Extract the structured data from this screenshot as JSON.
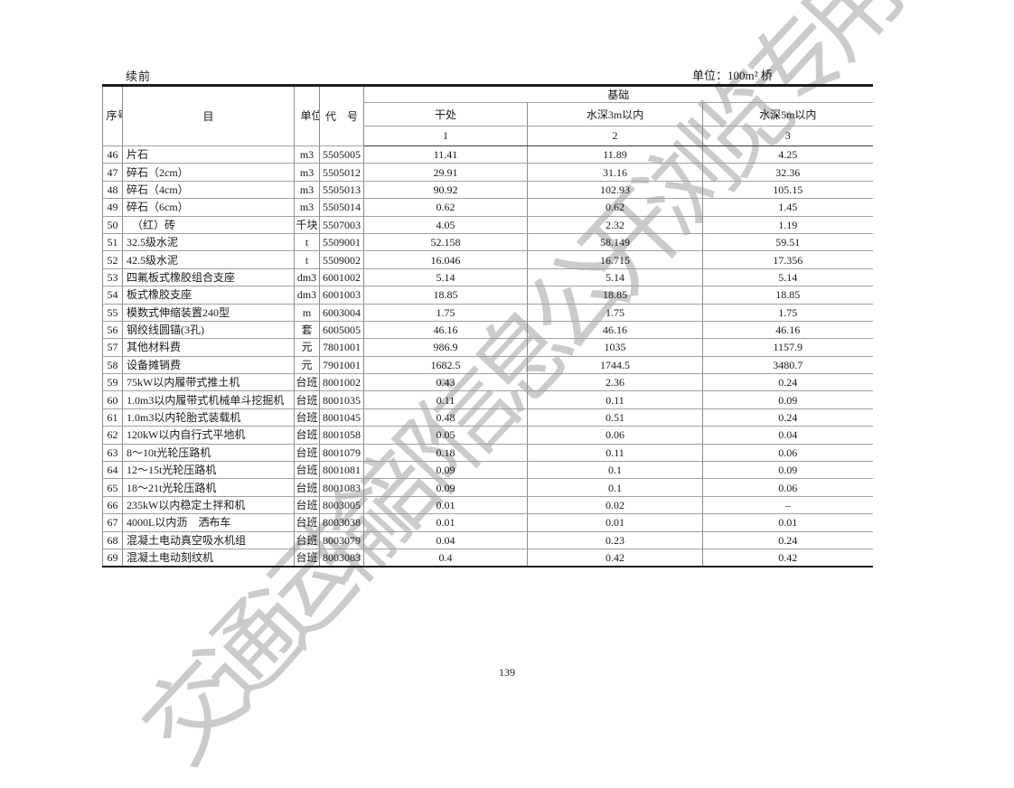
{
  "page": {
    "continuation_label": "续前",
    "unit_label": "单位：100m² 桥",
    "page_number": "139",
    "watermark": "交通运输部信息公开浏览专用",
    "watermark_color": "#cbcbcb"
  },
  "table": {
    "headers": {
      "seq": "序号",
      "item": "目",
      "unit": "单位",
      "code": "代　号",
      "group": "基础",
      "col_dry": "干处",
      "col_w3": "水深3m以内",
      "col_w5": "水深5m以内",
      "num1": "1",
      "num2": "2",
      "num3": "3"
    },
    "rows": [
      {
        "no": "46",
        "item": "片石",
        "unit": "m3",
        "code": "5505005",
        "dry": "11.41",
        "w3": "11.89",
        "w5": "4.25"
      },
      {
        "no": "47",
        "item": "碎石（2cm）",
        "unit": "m3",
        "code": "5505012",
        "dry": "29.91",
        "w3": "31.16",
        "w5": "32.36"
      },
      {
        "no": "48",
        "item": "碎石（4cm）",
        "unit": "m3",
        "code": "5505013",
        "dry": "90.92",
        "w3": "102.93",
        "w5": "105.15"
      },
      {
        "no": "49",
        "item": "碎石（6cm）",
        "unit": "m3",
        "code": "5505014",
        "dry": "0.62",
        "w3": "0.62",
        "w5": "1.45"
      },
      {
        "no": "50",
        "item": "　（红）砖",
        "unit": "千块",
        "code": "5507003",
        "dry": "4.05",
        "w3": "2.32",
        "w5": "1.19"
      },
      {
        "no": "51",
        "item": "32.5级水泥",
        "unit": "t",
        "code": "5509001",
        "dry": "52.158",
        "w3": "58.149",
        "w5": "59.51"
      },
      {
        "no": "52",
        "item": "42.5级水泥",
        "unit": "t",
        "code": "5509002",
        "dry": "16.046",
        "w3": "16.715",
        "w5": "17.356"
      },
      {
        "no": "53",
        "item": "四氟板式橡胶组合支座",
        "unit": "dm3",
        "code": "6001002",
        "dry": "5.14",
        "w3": "5.14",
        "w5": "5.14"
      },
      {
        "no": "54",
        "item": "板式橡胶支座",
        "unit": "dm3",
        "code": "6001003",
        "dry": "18.85",
        "w3": "18.85",
        "w5": "18.85"
      },
      {
        "no": "55",
        "item": "模数式伸缩装置240型",
        "unit": "m",
        "code": "6003004",
        "dry": "1.75",
        "w3": "1.75",
        "w5": "1.75"
      },
      {
        "no": "56",
        "item": "钢绞线圆锚(3孔)",
        "unit": "套",
        "code": "6005005",
        "dry": "46.16",
        "w3": "46.16",
        "w5": "46.16"
      },
      {
        "no": "57",
        "item": "其他材料费",
        "unit": "元",
        "code": "7801001",
        "dry": "986.9",
        "w3": "1035",
        "w5": "1157.9"
      },
      {
        "no": "58",
        "item": "设备摊销费",
        "unit": "元",
        "code": "7901001",
        "dry": "1682.5",
        "w3": "1744.5",
        "w5": "3480.7"
      },
      {
        "no": "59",
        "item": "75kW以内履带式推土机",
        "unit": "台班",
        "code": "8001002",
        "dry": "0.43",
        "w3": "2.36",
        "w5": "0.24"
      },
      {
        "no": "60",
        "item": "1.0m3以内履带式机械单斗挖掘机",
        "unit": "台班",
        "code": "8001035",
        "dry": "0.11",
        "w3": "0.11",
        "w5": "0.09"
      },
      {
        "no": "61",
        "item": "1.0m3以内轮胎式装载机",
        "unit": "台班",
        "code": "8001045",
        "dry": "0.48",
        "w3": "0.51",
        "w5": "0.24"
      },
      {
        "no": "62",
        "item": "120kW以内自行式平地机",
        "unit": "台班",
        "code": "8001058",
        "dry": "0.05",
        "w3": "0.06",
        "w5": "0.04"
      },
      {
        "no": "63",
        "item": "8～10t光轮压路机",
        "unit": "台班",
        "code": "8001079",
        "dry": "0.18",
        "w3": "0.11",
        "w5": "0.06"
      },
      {
        "no": "64",
        "item": "12～15t光轮压路机",
        "unit": "台班",
        "code": "8001081",
        "dry": "0.09",
        "w3": "0.1",
        "w5": "0.09"
      },
      {
        "no": "65",
        "item": "18～21t光轮压路机",
        "unit": "台班",
        "code": "8001083",
        "dry": "0.09",
        "w3": "0.1",
        "w5": "0.06"
      },
      {
        "no": "66",
        "item": "235kW以内稳定土拌和机",
        "unit": "台班",
        "code": "8003005",
        "dry": "0.01",
        "w3": "0.02",
        "w5": "–"
      },
      {
        "no": "67",
        "item": "4000L以内沥　洒布车",
        "unit": "台班",
        "code": "8003038",
        "dry": "0.01",
        "w3": "0.01",
        "w5": "0.01"
      },
      {
        "no": "68",
        "item": "混凝土电动真空吸水机组",
        "unit": "台班",
        "code": "8003079",
        "dry": "0.04",
        "w3": "0.23",
        "w5": "0.24"
      },
      {
        "no": "69",
        "item": "混凝土电动刻纹机",
        "unit": "台班",
        "code": "8003083",
        "dry": "0.4",
        "w3": "0.42",
        "w5": "0.42"
      }
    ]
  }
}
